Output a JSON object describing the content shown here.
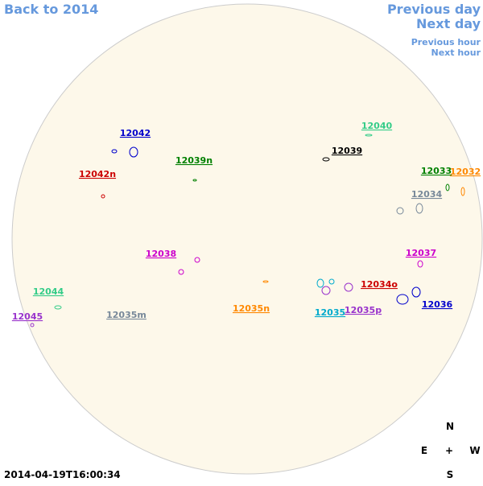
{
  "nav": {
    "back": "Back to 2014",
    "previous_day": "Previous day",
    "next_day": "Next day",
    "previous_hour": "Previous hour",
    "next_hour": "Next hour"
  },
  "regions": [
    "12042",
    "12040",
    "12039",
    "12039n",
    "12042n",
    "12033",
    "12032",
    "12034",
    "12038",
    "12037",
    "12034o",
    "12044",
    "12035m",
    "12035n",
    "12035",
    "12035p",
    "12036",
    "12045"
  ],
  "timestamp": "2014-04-19T16:00:34",
  "compass": {
    "north": "N",
    "east": "E",
    "center": "+",
    "west": "W",
    "south": "S"
  }
}
